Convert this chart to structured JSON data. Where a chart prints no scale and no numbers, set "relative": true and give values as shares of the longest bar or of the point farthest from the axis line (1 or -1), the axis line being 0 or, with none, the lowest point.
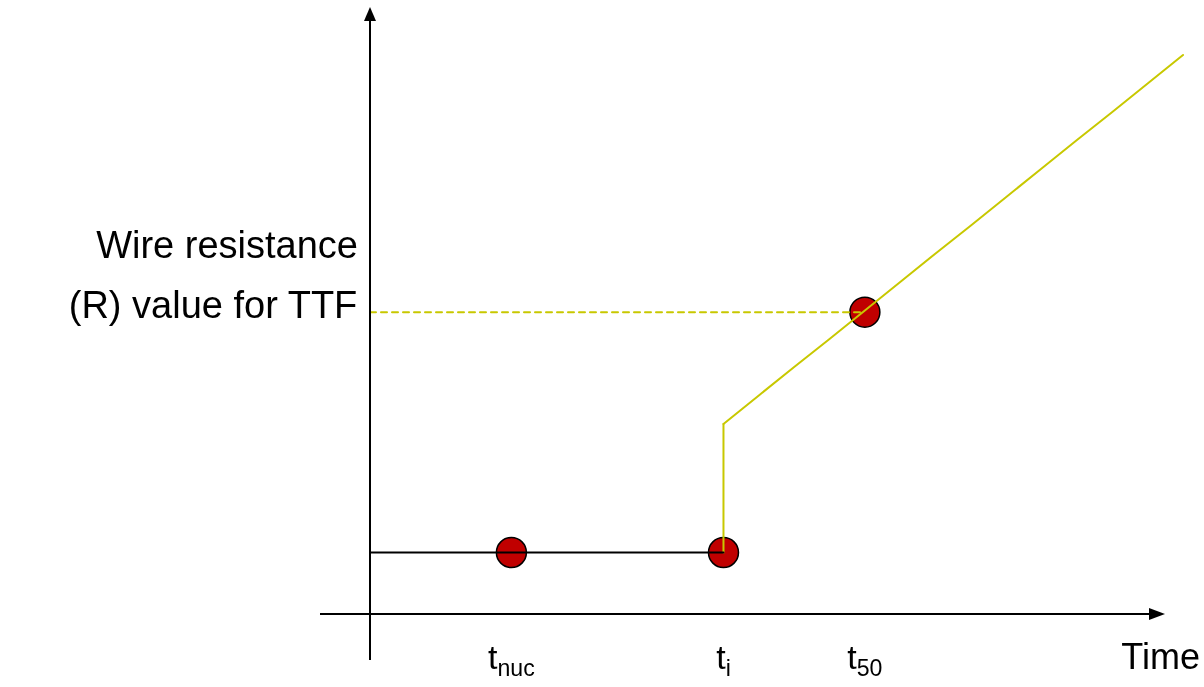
{
  "chart_data": {
    "type": "line",
    "relative": true,
    "xlabel": "Time",
    "categories": [
      null,
      null,
      null,
      null,
      "t$_{nuc}$",
      null,
      null,
      null,
      null,
      null,
      "t$_{i}$",
      null,
      null,
      null,
      "t$_{50}$",
      null,
      null,
      null,
      null,
      null,
      null,
      null,
      null,
      null
    ],
    "series": [
      {
        "values": [
          0.11,
          0.11,
          0.11,
          0.11,
          0.11,
          0.11,
          0.11,
          0.11,
          0.11,
          0.11,
          0.11,
          null,
          null,
          null,
          null,
          null,
          null,
          null,
          null,
          null,
          null,
          null,
          null,
          null
        ],
        "color": "#000000",
        "marker": "none"
      },
      {
        "values": [
          null,
          null,
          null,
          null,
          null,
          null,
          null,
          null,
          null,
          null,
          0.34,
          0.391,
          0.442,
          0.492,
          0.543,
          0.594,
          0.645,
          0.695,
          0.746,
          0.797,
          0.848,
          0.898,
          0.949,
          1
        ],
        "color": "#c8c800",
        "marker": "none"
      },
      {
        "x": [
          "t$_{i}$",
          "t$_{i}$"
        ],
        "values": [
          0.11,
          0.34
        ],
        "color": "#c8c800",
        "marker": "none"
      },
      {
        "values": [
          0.54,
          0.54,
          0.54,
          0.54,
          0.54,
          0.54,
          0.54,
          0.54,
          0.54,
          0.54,
          0.54,
          0.54,
          0.54,
          0.54,
          0.54,
          null,
          null,
          null,
          null,
          null,
          null,
          null,
          null,
          null
        ],
        "color": "#c8c800",
        "marker": "none",
        "line_style": "dashed"
      },
      {
        "type": "scatter",
        "values": [
          null,
          null,
          null,
          null,
          0.11,
          null,
          null,
          null,
          null,
          null,
          0.11,
          null,
          null,
          null,
          0.54,
          null,
          null,
          null,
          null,
          null,
          null,
          null,
          null,
          null
        ],
        "color": "#c00000",
        "marker": "circle"
      }
    ],
    "annotations": [
      "Wire resistance (R) value for TTF"
    ]
  }
}
